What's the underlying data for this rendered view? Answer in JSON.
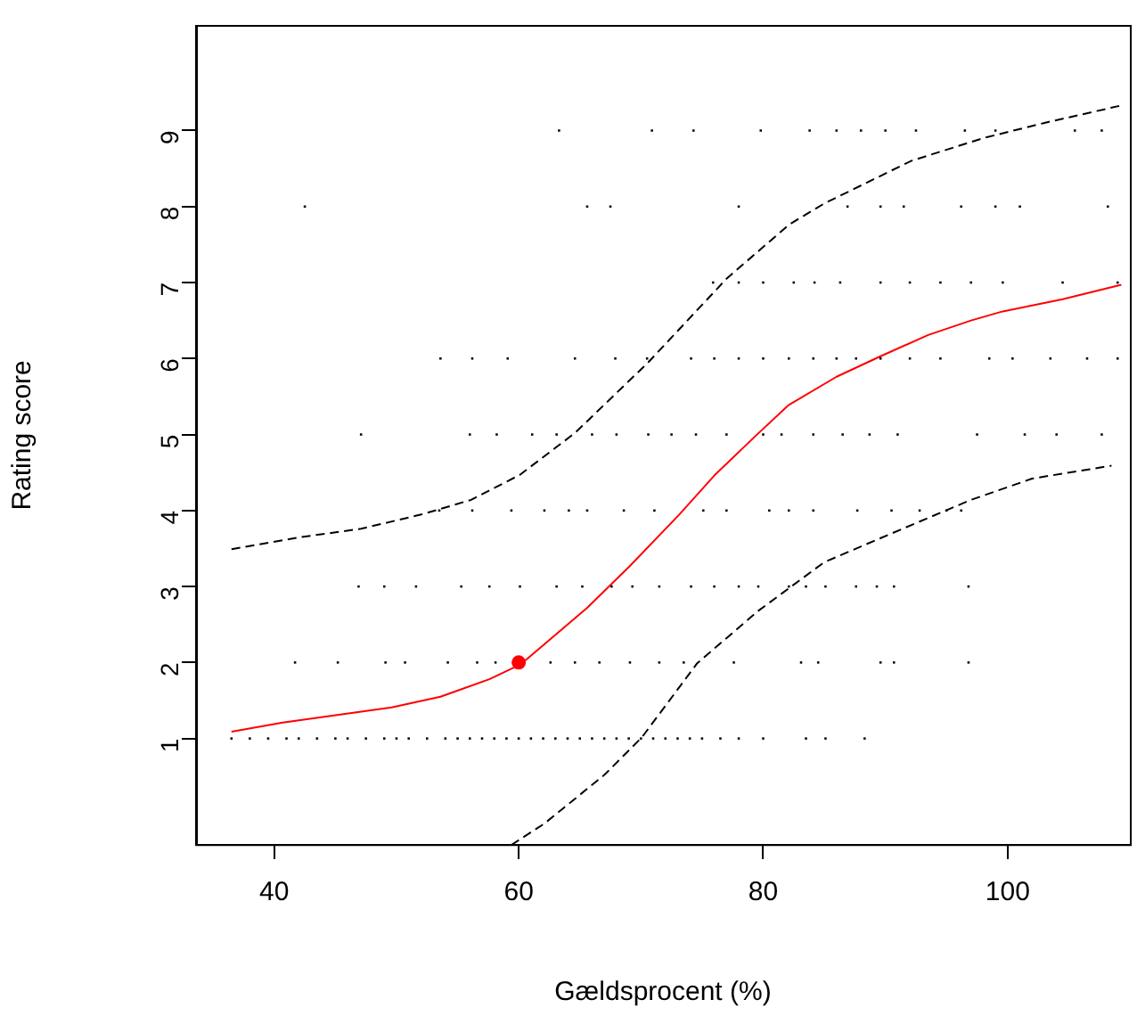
{
  "chart_data": {
    "type": "scatter",
    "xlabel": "Gældsprocent (%)",
    "ylabel": "Rating score",
    "xlim": [
      33.6,
      110
    ],
    "ylim": [
      -0.4,
      10.38
    ],
    "xticks": [
      40,
      60,
      80,
      100
    ],
    "yticks": [
      1,
      2,
      3,
      4,
      5,
      6,
      7,
      8,
      9
    ],
    "grid": false,
    "legend": false,
    "series": [
      {
        "marker": "square",
        "color": "#000000",
        "x": [
          63.3,
          70.9,
          74.3,
          79.8,
          83.8,
          86,
          88,
          90,
          92.5,
          96.5,
          99,
          105.5,
          107.7,
          42.5,
          65.6,
          67.5,
          78,
          86.9,
          89.6,
          91.5,
          96.2,
          99,
          101,
          108.2,
          75.9,
          78,
          80,
          82.5,
          84.2,
          86.3,
          89.6,
          92,
          94.5,
          97,
          99.6,
          104.5,
          109,
          53.6,
          56.2,
          59.1,
          64.6,
          67.9,
          70.5,
          74.1,
          76,
          78,
          80,
          82.1,
          84.1,
          86,
          87.6,
          89.6,
          92,
          94.5,
          98.5,
          100.4,
          103.5,
          106.5,
          109,
          47.1,
          56,
          58.2,
          61.1,
          63.1,
          66,
          68,
          70.6,
          72.5,
          74.5,
          77,
          80,
          81.5,
          84.1,
          86.5,
          88.7,
          91,
          97.5,
          101.4,
          104,
          107.7,
          53.5,
          56.2,
          59.4,
          62.1,
          64.1,
          65.6,
          68.6,
          71.1,
          75.1,
          77,
          80.5,
          82.1,
          84.1,
          87.7,
          90.5,
          92.8,
          95,
          96.2,
          46.9,
          49,
          51.6,
          55.3,
          57.6,
          60.1,
          63.1,
          65.2,
          67.6,
          69.3,
          71.5,
          74.1,
          76,
          78,
          79.6,
          82.1,
          83.5,
          85.1,
          87.6,
          89.3,
          90.7,
          96.8,
          41.7,
          45.2,
          49.1,
          50.7,
          54.2,
          56.6,
          58.1,
          62.6,
          64.6,
          66.6,
          69.1,
          71.5,
          73.5,
          77.6,
          83.1,
          84.5,
          89.6,
          90.7,
          96.8,
          36.5,
          38,
          39.5,
          41,
          42,
          43.5,
          45,
          46,
          47.5,
          49,
          50,
          51,
          52.5,
          54,
          55,
          56,
          57,
          58,
          59,
          60,
          61,
          62,
          63,
          64,
          65,
          66,
          67,
          68,
          69,
          70,
          71,
          72,
          73,
          74,
          75,
          76.5,
          78,
          80,
          83.5,
          85.1,
          88.3
        ],
        "values": [
          9,
          9,
          9,
          9,
          9,
          9,
          9,
          9,
          9,
          9,
          9,
          9,
          9,
          8,
          8,
          8,
          8,
          8,
          8,
          8,
          8,
          8,
          8,
          8,
          7,
          7,
          7,
          7,
          7,
          7,
          7,
          7,
          7,
          7,
          7,
          7,
          7,
          6,
          6,
          6,
          6,
          6,
          6,
          6,
          6,
          6,
          6,
          6,
          6,
          6,
          6,
          6,
          6,
          6,
          6,
          6,
          6,
          6,
          6,
          5,
          5,
          5,
          5,
          5,
          5,
          5,
          5,
          5,
          5,
          5,
          5,
          5,
          5,
          5,
          5,
          5,
          5,
          5,
          5,
          5,
          4,
          4,
          4,
          4,
          4,
          4,
          4,
          4,
          4,
          4,
          4,
          4,
          4,
          4,
          4,
          4,
          4,
          4,
          3,
          3,
          3,
          3,
          3,
          3,
          3,
          3,
          3,
          3,
          3,
          3,
          3,
          3,
          3,
          3,
          3,
          3,
          3,
          3,
          3,
          3,
          2,
          2,
          2,
          2,
          2,
          2,
          2,
          2,
          2,
          2,
          2,
          2,
          2,
          2,
          2,
          2,
          2,
          2,
          2,
          1,
          1,
          1,
          1,
          1,
          1,
          1,
          1,
          1,
          1,
          1,
          1,
          1,
          1,
          1,
          1,
          1,
          1,
          1,
          1,
          1,
          1,
          1,
          1,
          1,
          1,
          1,
          1,
          1,
          1,
          1,
          1,
          1,
          1,
          1,
          1,
          1,
          1,
          1,
          1,
          1
        ]
      },
      {
        "type": "line",
        "marker": "none",
        "line_style": "solid",
        "color": "#ff0000",
        "x": [
          36.5,
          40.7,
          49.6,
          53.6,
          57.6,
          60.2,
          65.6,
          69.1,
          73.1,
          76,
          79.3,
          82.1,
          86,
          89.6,
          93.5,
          97,
          99.6,
          104.5,
          109.3
        ],
        "values": [
          1.09,
          1.21,
          1.41,
          1.55,
          1.78,
          1.98,
          2.72,
          3.27,
          3.94,
          4.46,
          4.97,
          5.39,
          5.76,
          6.03,
          6.31,
          6.5,
          6.62,
          6.78,
          6.97
        ]
      },
      {
        "type": "line",
        "marker": "none",
        "line_style": "dashed",
        "color": "#000000",
        "x": [
          36.5,
          42.2,
          47.1,
          52.1,
          56.1,
          60.1,
          64.6,
          70.6,
          77,
          82.1,
          85,
          92.1,
          98,
          103,
          109.3
        ],
        "values": [
          3.49,
          3.65,
          3.76,
          3.95,
          4.14,
          4.47,
          5.02,
          5.95,
          7.05,
          7.76,
          8.04,
          8.6,
          8.9,
          9.1,
          9.33
        ]
      },
      {
        "type": "line",
        "marker": "none",
        "line_style": "dashed",
        "color": "#000000",
        "x": [
          59.4,
          62.1,
          67,
          70.1,
          74.6,
          79.6,
          85,
          89.5,
          97,
          102,
          108.5
        ],
        "values": [
          -0.4,
          -0.12,
          0.52,
          1.02,
          1.99,
          2.68,
          3.32,
          3.63,
          4.14,
          4.42,
          4.59
        ]
      },
      {
        "marker": "circle",
        "color": "#ff0000",
        "x": [
          60
        ],
        "values": [
          2
        ]
      }
    ]
  }
}
